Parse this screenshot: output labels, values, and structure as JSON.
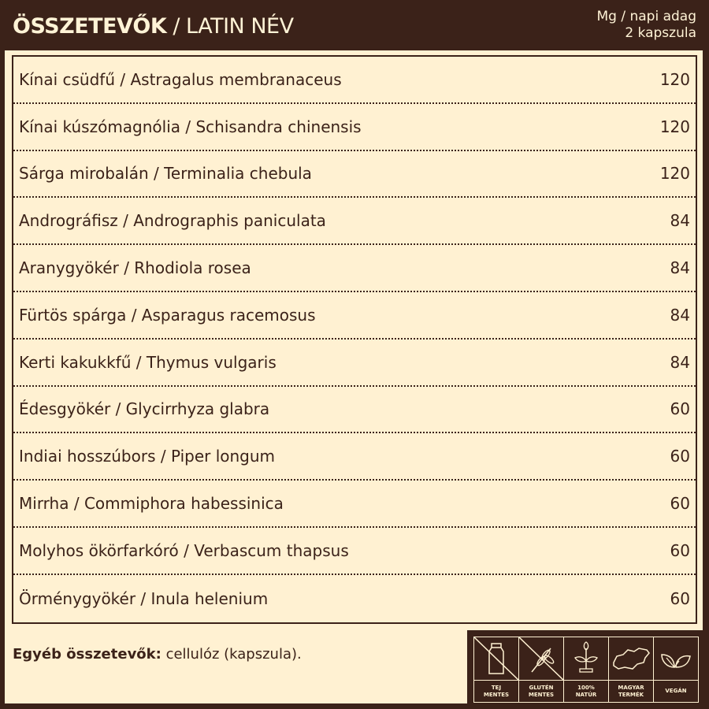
{
  "header": {
    "title_bold": "ÖSSZETEVŐK",
    "title_rest": " / LATIN NÉV",
    "unit_line1": "Mg / napi adag",
    "unit_line2": "2 kapszula"
  },
  "ingredients": [
    {
      "name": "Kínai csüdfű / Astragalus membranaceus",
      "mg": "120"
    },
    {
      "name": "Kínai kúszómagnólia / Schisandra chinensis",
      "mg": "120"
    },
    {
      "name": "Sárga mirobalán / Terminalia chebula",
      "mg": "120"
    },
    {
      "name": "Andrográfisz / Andrographis paniculata",
      "mg": "84"
    },
    {
      "name": "Aranygyökér / Rhodiola rosea",
      "mg": "84"
    },
    {
      "name": "Fürtös spárga / Asparagus racemosus",
      "mg": "84"
    },
    {
      "name": "Kerti kakukkfű / Thymus vulgaris",
      "mg": "84"
    },
    {
      "name": "Édesgyökér / Glycirrhyza glabra",
      "mg": "60"
    },
    {
      "name": "Indiai hosszúbors / Piper longum",
      "mg": "60"
    },
    {
      "name": "Mirrha / Commiphora habessinica",
      "mg": "60"
    },
    {
      "name": "Molyhos ökörfarkóró / Verbascum thapsus",
      "mg": "60"
    },
    {
      "name": "Örménygyökér / Inula helenium",
      "mg": "60"
    }
  ],
  "other": {
    "label": "Egyéb összetevők:",
    "value": " cellulóz (kapszula)."
  },
  "badges": [
    {
      "icon": "milk-bottle-crossed-icon",
      "line1": "TEJ",
      "line2": "MENTES"
    },
    {
      "icon": "wheat-crossed-icon",
      "line1": "GLUTÉN",
      "line2": "MENTES"
    },
    {
      "icon": "sprout-icon",
      "line1": "100%",
      "line2": "NATÚR"
    },
    {
      "icon": "hungary-map-icon",
      "line1": "MAGYAR",
      "line2": "TERMÉK"
    },
    {
      "icon": "leaves-icon",
      "line1": "VEGÁN",
      "line2": ""
    }
  ],
  "colors": {
    "dark": "#3b2219",
    "cream": "#fff1d2"
  }
}
